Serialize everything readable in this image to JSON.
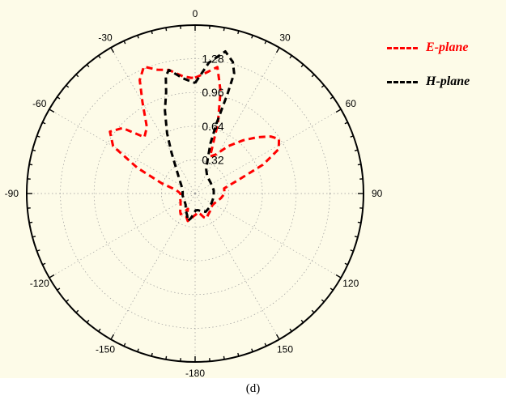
{
  "caption": "(d)",
  "colors": {
    "background": "#fdfbe8",
    "e_plane": "#ff0000",
    "h_plane": "#000000",
    "grid": "#999999"
  },
  "chart_data": {
    "type": "polar-line",
    "title": "",
    "angle_labels": [
      "0",
      "30",
      "60",
      "90",
      "120",
      "150",
      "-180",
      "-150",
      "-120",
      "-90",
      "-60",
      "-30"
    ],
    "angle_values": [
      0,
      30,
      60,
      90,
      120,
      150,
      180,
      -150,
      -120,
      -90,
      -60,
      -30
    ],
    "radial_ticks": [
      0.32,
      0.64,
      0.96,
      1.28
    ],
    "radial_tick_labels": [
      "0.32",
      "0.64",
      "0.96",
      "1.28"
    ],
    "r_max": 1.6,
    "grid": true,
    "legend_position": "top-right",
    "series": [
      {
        "name": "E-plane",
        "color": "#ff0000",
        "style": "dashed",
        "points": [
          [
            0,
            1.1
          ],
          [
            5,
            1.15
          ],
          [
            10,
            1.22
          ],
          [
            12,
            1.1
          ],
          [
            14,
            1.0
          ],
          [
            18,
            0.7
          ],
          [
            22,
            0.38
          ],
          [
            28,
            0.42
          ],
          [
            35,
            0.55
          ],
          [
            42,
            0.68
          ],
          [
            48,
            0.8
          ],
          [
            53,
            0.9
          ],
          [
            57,
            0.95
          ],
          [
            62,
            0.9
          ],
          [
            67,
            0.7
          ],
          [
            72,
            0.45
          ],
          [
            80,
            0.28
          ],
          [
            90,
            0.28
          ],
          [
            100,
            0.25
          ],
          [
            110,
            0.22
          ],
          [
            120,
            0.2
          ],
          [
            130,
            0.2
          ],
          [
            140,
            0.22
          ],
          [
            150,
            0.24
          ],
          [
            155,
            0.26
          ],
          [
            160,
            0.24
          ],
          [
            166,
            0.2
          ],
          [
            172,
            0.18
          ],
          [
            178,
            0.2
          ],
          [
            -175,
            0.22
          ],
          [
            -170,
            0.25
          ],
          [
            -165,
            0.27
          ],
          [
            -160,
            0.24
          ],
          [
            -155,
            0.16
          ],
          [
            -150,
            0.2
          ],
          [
            -145,
            0.24
          ],
          [
            -140,
            0.22
          ],
          [
            -130,
            0.18
          ],
          [
            -120,
            0.16
          ],
          [
            -110,
            0.15
          ],
          [
            -100,
            0.14
          ],
          [
            -90,
            0.14
          ],
          [
            -80,
            0.18
          ],
          [
            -73,
            0.33
          ],
          [
            -66,
            0.6
          ],
          [
            -60,
            0.9
          ],
          [
            -54,
            1.0
          ],
          [
            -48,
            0.93
          ],
          [
            -42,
            0.72
          ],
          [
            -36,
            0.78
          ],
          [
            -30,
            1.0
          ],
          [
            -26,
            1.2
          ],
          [
            -22,
            1.3
          ],
          [
            -17,
            1.23
          ],
          [
            -12,
            1.2
          ],
          [
            -6,
            1.12
          ],
          [
            -2,
            1.1
          ],
          [
            0,
            1.1
          ]
        ]
      },
      {
        "name": "H-plane",
        "color": "#000000",
        "style": "dashed",
        "points": [
          [
            0,
            1.05
          ],
          [
            6,
            1.25
          ],
          [
            12,
            1.38
          ],
          [
            16,
            1.3
          ],
          [
            18,
            1.2
          ],
          [
            18,
            1.0
          ],
          [
            17,
            0.7
          ],
          [
            17,
            0.5
          ],
          [
            20,
            0.35
          ],
          [
            25,
            0.25
          ],
          [
            35,
            0.2
          ],
          [
            55,
            0.18
          ],
          [
            80,
            0.18
          ],
          [
            100,
            0.18
          ],
          [
            120,
            0.18
          ],
          [
            135,
            0.19
          ],
          [
            150,
            0.2
          ],
          [
            160,
            0.18
          ],
          [
            170,
            0.16
          ],
          [
            178,
            0.16
          ],
          [
            -175,
            0.2
          ],
          [
            -170,
            0.24
          ],
          [
            -165,
            0.27
          ],
          [
            -160,
            0.22
          ],
          [
            -150,
            0.18
          ],
          [
            -140,
            0.14
          ],
          [
            -120,
            0.12
          ],
          [
            -100,
            0.12
          ],
          [
            -80,
            0.12
          ],
          [
            -60,
            0.15
          ],
          [
            -45,
            0.22
          ],
          [
            -35,
            0.33
          ],
          [
            -30,
            0.45
          ],
          [
            -25,
            0.63
          ],
          [
            -20,
            0.84
          ],
          [
            -16,
            1.0
          ],
          [
            -14,
            1.15
          ],
          [
            -12,
            1.2
          ],
          [
            -6,
            1.1
          ],
          [
            0,
            1.05
          ]
        ]
      }
    ]
  }
}
